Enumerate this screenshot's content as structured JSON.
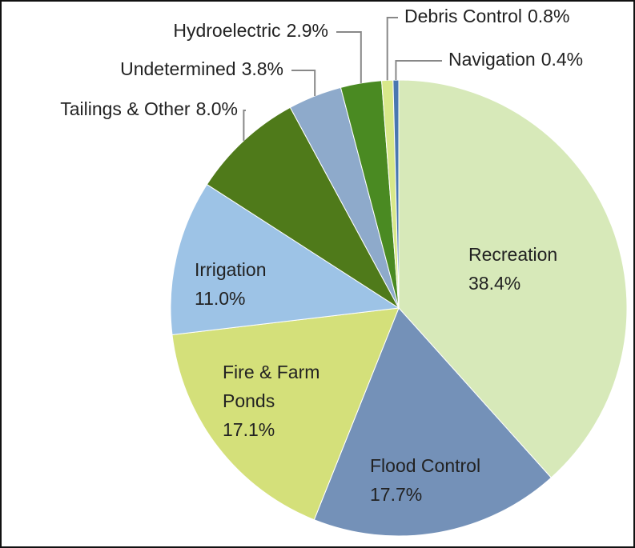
{
  "chart_data": {
    "type": "pie",
    "categories": [
      "Recreation",
      "Flood Control",
      "Fire & Farm Ponds",
      "Irrigation",
      "Tailings & Other",
      "Undetermined",
      "Hydroelectric",
      "Debris Control",
      "Navigation"
    ],
    "values": [
      38.4,
      17.7,
      17.1,
      11.0,
      8.0,
      3.8,
      2.9,
      0.8,
      0.4
    ],
    "value_labels": [
      "38.4%",
      "17.7%",
      "17.1%",
      "11.0%",
      "8.0%",
      "3.8%",
      "2.9%",
      "0.8%",
      "0.4%"
    ],
    "colors": [
      "#d7e9b9",
      "#7491b8",
      "#d4e07a",
      "#9dc3e6",
      "#4f7a1a",
      "#8eaacb",
      "#4a8a22",
      "#d8e88a",
      "#4a78b0"
    ]
  }
}
